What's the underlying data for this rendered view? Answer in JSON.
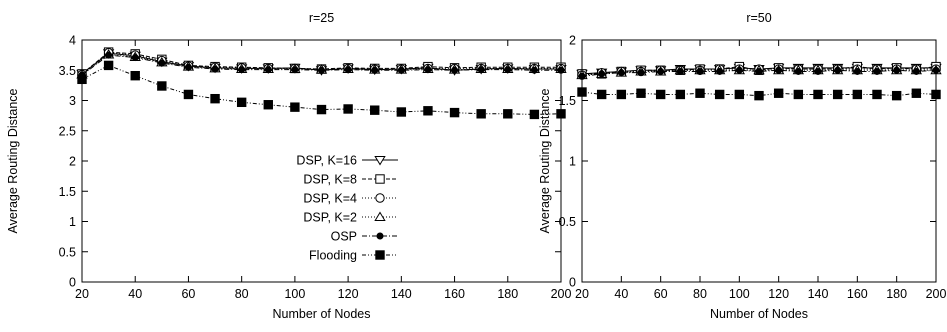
{
  "chart_data": [
    {
      "type": "line",
      "title": "r=25",
      "xlabel": "Number of Nodes",
      "ylabel": "Average Routing Distance",
      "xlim": [
        20,
        200
      ],
      "ylim": [
        0,
        4
      ],
      "xticks": [
        "20",
        "40",
        "60",
        "80",
        "100",
        "120",
        "140",
        "160",
        "180",
        "200"
      ],
      "yticks": [
        "0",
        "0.5",
        "1",
        "1.5",
        "2",
        "2.5",
        "3",
        "3.5",
        "4"
      ],
      "grid": false,
      "legend_position": "bottom-right",
      "x": [
        20,
        30,
        40,
        50,
        60,
        70,
        80,
        90,
        100,
        110,
        120,
        130,
        140,
        150,
        160,
        170,
        180,
        190,
        200
      ],
      "series": [
        {
          "name": "DSP, K=16",
          "marker": "triangle-down",
          "dash": "solid",
          "values": [
            3.44,
            3.78,
            3.74,
            3.64,
            3.57,
            3.54,
            3.53,
            3.53,
            3.54,
            3.5,
            3.53,
            3.51,
            3.52,
            3.54,
            3.5,
            3.52,
            3.53,
            3.52,
            3.52
          ]
        },
        {
          "name": "DSP, K=8",
          "marker": "square-open",
          "dash": "dashed",
          "values": [
            3.44,
            3.8,
            3.77,
            3.68,
            3.58,
            3.56,
            3.55,
            3.54,
            3.53,
            3.52,
            3.54,
            3.53,
            3.53,
            3.56,
            3.54,
            3.55,
            3.55,
            3.55,
            3.55
          ]
        },
        {
          "name": "DSP, K=4",
          "marker": "circle-open",
          "dash": "dotted",
          "values": [
            3.43,
            3.79,
            3.75,
            3.66,
            3.57,
            3.55,
            3.54,
            3.53,
            3.53,
            3.52,
            3.53,
            3.52,
            3.52,
            3.53,
            3.53,
            3.53,
            3.53,
            3.53,
            3.53
          ]
        },
        {
          "name": "DSP, K=2",
          "marker": "triangle-up",
          "dash": "dotted",
          "values": [
            3.43,
            3.76,
            3.72,
            3.63,
            3.56,
            3.53,
            3.52,
            3.52,
            3.52,
            3.51,
            3.52,
            3.51,
            3.51,
            3.52,
            3.51,
            3.52,
            3.52,
            3.52,
            3.52
          ]
        },
        {
          "name": "OSP",
          "marker": "circle-filled",
          "dash": "dashdot",
          "values": [
            3.42,
            3.75,
            3.71,
            3.62,
            3.55,
            3.52,
            3.51,
            3.51,
            3.51,
            3.5,
            3.51,
            3.5,
            3.5,
            3.51,
            3.5,
            3.51,
            3.51,
            3.5,
            3.5
          ]
        },
        {
          "name": "Flooding",
          "marker": "square-filled",
          "dash": "dashdotdot",
          "values": [
            3.35,
            3.58,
            3.41,
            3.24,
            3.1,
            3.03,
            2.97,
            2.93,
            2.89,
            2.85,
            2.86,
            2.84,
            2.81,
            2.83,
            2.8,
            2.78,
            2.78,
            2.77,
            2.78
          ]
        }
      ]
    },
    {
      "type": "line",
      "title": "r=50",
      "xlabel": "Number of Nodes",
      "ylabel": "Average Routing Distance",
      "xlim": [
        20,
        200
      ],
      "ylim": [
        0,
        2
      ],
      "xticks": [
        "20",
        "40",
        "60",
        "80",
        "100",
        "120",
        "140",
        "160",
        "180",
        "200"
      ],
      "yticks": [
        "0",
        "0.5",
        "1",
        "1.5",
        "2"
      ],
      "grid": false,
      "legend_position": "none",
      "x": [
        20,
        30,
        40,
        50,
        60,
        70,
        80,
        90,
        100,
        110,
        120,
        130,
        140,
        150,
        160,
        170,
        180,
        190,
        200
      ],
      "series": [
        {
          "name": "DSP, K=16",
          "marker": "triangle-down",
          "dash": "solid",
          "values": [
            1.72,
            1.73,
            1.74,
            1.75,
            1.75,
            1.76,
            1.76,
            1.76,
            1.77,
            1.76,
            1.77,
            1.77,
            1.77,
            1.77,
            1.77,
            1.77,
            1.77,
            1.77,
            1.77
          ]
        },
        {
          "name": "DSP, K=8",
          "marker": "square-open",
          "dash": "dashed",
          "values": [
            1.72,
            1.72,
            1.74,
            1.75,
            1.75,
            1.75,
            1.76,
            1.76,
            1.78,
            1.75,
            1.77,
            1.76,
            1.76,
            1.76,
            1.78,
            1.76,
            1.77,
            1.76,
            1.78
          ]
        },
        {
          "name": "DSP, K=4",
          "marker": "circle-open",
          "dash": "dotted",
          "values": [
            1.71,
            1.73,
            1.74,
            1.74,
            1.75,
            1.75,
            1.75,
            1.76,
            1.76,
            1.76,
            1.76,
            1.76,
            1.76,
            1.76,
            1.76,
            1.76,
            1.76,
            1.76,
            1.76
          ]
        },
        {
          "name": "DSP, K=2",
          "marker": "triangle-up",
          "dash": "dotted",
          "values": [
            1.71,
            1.72,
            1.73,
            1.74,
            1.74,
            1.75,
            1.75,
            1.75,
            1.75,
            1.75,
            1.75,
            1.75,
            1.75,
            1.75,
            1.75,
            1.75,
            1.75,
            1.75,
            1.75
          ]
        },
        {
          "name": "OSP",
          "marker": "circle-filled",
          "dash": "dashdot",
          "values": [
            1.7,
            1.72,
            1.73,
            1.73,
            1.74,
            1.74,
            1.74,
            1.74,
            1.75,
            1.74,
            1.75,
            1.74,
            1.74,
            1.75,
            1.74,
            1.74,
            1.75,
            1.74,
            1.75
          ]
        },
        {
          "name": "Flooding",
          "marker": "square-filled",
          "dash": "dashdotdot",
          "values": [
            1.57,
            1.55,
            1.55,
            1.56,
            1.55,
            1.55,
            1.56,
            1.55,
            1.55,
            1.54,
            1.56,
            1.55,
            1.55,
            1.55,
            1.55,
            1.55,
            1.54,
            1.56,
            1.55
          ]
        }
      ]
    }
  ]
}
